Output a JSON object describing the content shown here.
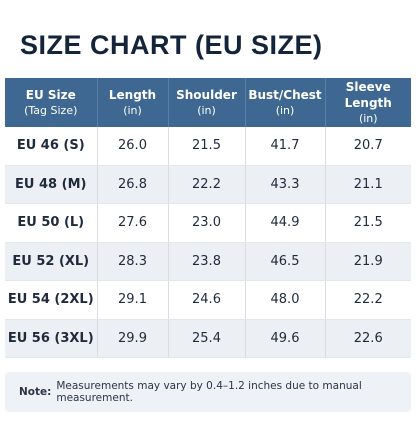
{
  "title": "SIZE CHART (EU SIZE)",
  "table": {
    "header": [
      {
        "label": "EU Size",
        "unit": "(Tag Size)"
      },
      {
        "label": "Length",
        "unit": "(in)"
      },
      {
        "label": "Shoulder",
        "unit": "(in)"
      },
      {
        "label": "Bust/Chest",
        "unit": "(in)"
      },
      {
        "label": "Sleeve Length",
        "unit": "(in)"
      }
    ],
    "rows": [
      [
        "EU 46 (S)",
        "26.0",
        "21.5",
        "41.7",
        "20.7"
      ],
      [
        "EU 48 (M)",
        "26.8",
        "22.2",
        "43.3",
        "21.1"
      ],
      [
        "EU 50 (L)",
        "27.6",
        "23.0",
        "44.9",
        "21.5"
      ],
      [
        "EU 52 (XL)",
        "28.3",
        "23.8",
        "46.5",
        "21.9"
      ],
      [
        "EU 54 (2XL)",
        "29.1",
        "24.6",
        "48.0",
        "22.2"
      ],
      [
        "EU 56 (3XL)",
        "29.9",
        "25.4",
        "49.6",
        "22.6"
      ]
    ]
  },
  "note": {
    "label": "Note:",
    "text": "Measurements may vary by 0.4–1.2 inches due to manual measurement."
  }
}
